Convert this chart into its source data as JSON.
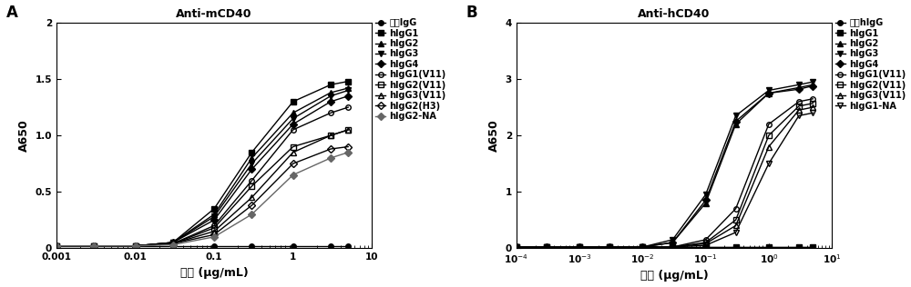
{
  "panel_A": {
    "title": "Anti-mCD40",
    "xlabel": "浓度 (μg/mL)",
    "ylabel": "A650",
    "xlim_log": [
      -3,
      1
    ],
    "ylim": [
      0,
      2
    ],
    "yticks": [
      0,
      0.5,
      1.0,
      1.5,
      2.0
    ],
    "ytick_labels": [
      "0",
      "0.5",
      "1.0",
      "1.5",
      "2"
    ],
    "xtick_labels": [
      "0.001",
      "0.01",
      "0.1",
      "1",
      "10"
    ],
    "xtick_vals": [
      0.001,
      0.01,
      0.1,
      1,
      10
    ],
    "label": "A",
    "series": [
      {
        "name": "对照IgG",
        "x": [
          0.001,
          0.003,
          0.01,
          0.03,
          0.1,
          0.3,
          1.0,
          3.0,
          5.0
        ],
        "y": [
          0.02,
          0.02,
          0.02,
          0.02,
          0.02,
          0.02,
          0.02,
          0.02,
          0.02
        ],
        "marker": "o",
        "fillstyle": "full",
        "color": "#000000",
        "markersize": 4,
        "linewidth": 1.0
      },
      {
        "name": "hIgG1",
        "x": [
          0.001,
          0.003,
          0.01,
          0.03,
          0.1,
          0.3,
          1.0,
          3.0,
          5.0
        ],
        "y": [
          0.02,
          0.02,
          0.02,
          0.05,
          0.35,
          0.85,
          1.3,
          1.45,
          1.48
        ],
        "marker": "s",
        "fillstyle": "full",
        "color": "#000000",
        "markersize": 4,
        "linewidth": 1.0
      },
      {
        "name": "hIgG2",
        "x": [
          0.001,
          0.003,
          0.01,
          0.03,
          0.1,
          0.3,
          1.0,
          3.0,
          5.0
        ],
        "y": [
          0.02,
          0.02,
          0.02,
          0.05,
          0.3,
          0.8,
          1.2,
          1.38,
          1.42
        ],
        "marker": "^",
        "fillstyle": "full",
        "color": "#000000",
        "markersize": 4,
        "linewidth": 1.0
      },
      {
        "name": "hIgG3",
        "x": [
          0.001,
          0.003,
          0.01,
          0.03,
          0.1,
          0.3,
          1.0,
          3.0,
          5.0
        ],
        "y": [
          0.02,
          0.02,
          0.02,
          0.05,
          0.28,
          0.75,
          1.15,
          1.35,
          1.4
        ],
        "marker": "v",
        "fillstyle": "full",
        "color": "#000000",
        "markersize": 4,
        "linewidth": 1.0
      },
      {
        "name": "hIgG4",
        "x": [
          0.001,
          0.003,
          0.01,
          0.03,
          0.1,
          0.3,
          1.0,
          3.0,
          5.0
        ],
        "y": [
          0.02,
          0.02,
          0.02,
          0.05,
          0.25,
          0.7,
          1.1,
          1.3,
          1.35
        ],
        "marker": "D",
        "fillstyle": "full",
        "color": "#000000",
        "markersize": 4,
        "linewidth": 1.0
      },
      {
        "name": "hIgG1(V11)",
        "x": [
          0.001,
          0.003,
          0.01,
          0.03,
          0.1,
          0.3,
          1.0,
          3.0,
          5.0
        ],
        "y": [
          0.02,
          0.02,
          0.02,
          0.04,
          0.2,
          0.6,
          1.05,
          1.2,
          1.25
        ],
        "marker": "o",
        "fillstyle": "none",
        "color": "#000000",
        "markersize": 4,
        "linewidth": 1.0
      },
      {
        "name": "hIgG2(V11)",
        "x": [
          0.001,
          0.003,
          0.01,
          0.03,
          0.1,
          0.3,
          1.0,
          3.0,
          5.0
        ],
        "y": [
          0.02,
          0.02,
          0.02,
          0.04,
          0.18,
          0.55,
          0.9,
          1.0,
          1.05
        ],
        "marker": "s",
        "fillstyle": "none",
        "color": "#000000",
        "markersize": 4,
        "linewidth": 1.0
      },
      {
        "name": "hIgG3(V11)",
        "x": [
          0.001,
          0.003,
          0.01,
          0.03,
          0.1,
          0.3,
          1.0,
          3.0,
          5.0
        ],
        "y": [
          0.02,
          0.02,
          0.02,
          0.04,
          0.15,
          0.45,
          0.85,
          1.0,
          1.05
        ],
        "marker": "^",
        "fillstyle": "none",
        "color": "#000000",
        "markersize": 4,
        "linewidth": 1.0
      },
      {
        "name": "hIgG2(H3)",
        "x": [
          0.001,
          0.003,
          0.01,
          0.03,
          0.1,
          0.3,
          1.0,
          3.0,
          5.0
        ],
        "y": [
          0.02,
          0.02,
          0.02,
          0.04,
          0.12,
          0.38,
          0.75,
          0.88,
          0.9
        ],
        "marker": "D",
        "fillstyle": "none",
        "color": "#000000",
        "markersize": 4,
        "linewidth": 1.0
      },
      {
        "name": "hIgG2-NA",
        "x": [
          0.001,
          0.003,
          0.01,
          0.03,
          0.1,
          0.3,
          1.0,
          3.0,
          5.0
        ],
        "y": [
          0.02,
          0.02,
          0.02,
          0.03,
          0.1,
          0.3,
          0.65,
          0.8,
          0.85
        ],
        "marker": "D",
        "fillstyle": "full",
        "color": "#666666",
        "markersize": 4,
        "linewidth": 1.0
      }
    ]
  },
  "panel_B": {
    "title": "Anti-hCD40",
    "xlabel": "浓度 (μg/mL)",
    "ylabel": "A650",
    "xlim_log": [
      -4,
      1
    ],
    "ylim": [
      0,
      4
    ],
    "yticks": [
      0,
      1,
      2,
      3,
      4
    ],
    "ytick_labels": [
      "0",
      "1",
      "2",
      "3",
      "4"
    ],
    "xtick_labels": [
      "10$^{-4}$",
      "10$^{-3}$",
      "10$^{-2}$",
      "10$^{-1}$",
      "10$^{0}$",
      "10$^{1}$"
    ],
    "xtick_vals": [
      0.0001,
      0.001,
      0.01,
      0.1,
      1.0,
      10.0
    ],
    "label": "B",
    "series": [
      {
        "name": "对照hIgG",
        "x": [
          0.0001,
          0.0003,
          0.001,
          0.003,
          0.01,
          0.03,
          0.1,
          0.3,
          1.0,
          3.0,
          5.0
        ],
        "y": [
          0.02,
          0.02,
          0.02,
          0.02,
          0.02,
          0.02,
          0.02,
          0.02,
          0.02,
          0.02,
          0.02
        ],
        "marker": "o",
        "fillstyle": "full",
        "color": "#000000",
        "markersize": 4,
        "linewidth": 1.0
      },
      {
        "name": "hIgG1",
        "x": [
          0.0001,
          0.0003,
          0.001,
          0.003,
          0.01,
          0.03,
          0.1,
          0.3,
          1.0,
          3.0,
          5.0
        ],
        "y": [
          0.02,
          0.02,
          0.02,
          0.02,
          0.02,
          0.02,
          0.02,
          0.02,
          0.02,
          0.02,
          0.02
        ],
        "marker": "s",
        "fillstyle": "full",
        "color": "#000000",
        "markersize": 4,
        "linewidth": 1.0
      },
      {
        "name": "hIgG2",
        "x": [
          0.0001,
          0.0003,
          0.001,
          0.003,
          0.01,
          0.03,
          0.1,
          0.3,
          1.0,
          3.0,
          5.0
        ],
        "y": [
          0.02,
          0.02,
          0.02,
          0.02,
          0.02,
          0.1,
          0.8,
          2.2,
          2.75,
          2.85,
          2.9
        ],
        "marker": "^",
        "fillstyle": "full",
        "color": "#000000",
        "markersize": 4,
        "linewidth": 1.0
      },
      {
        "name": "hIgG3",
        "x": [
          0.0001,
          0.0003,
          0.001,
          0.003,
          0.01,
          0.03,
          0.1,
          0.3,
          1.0,
          3.0,
          5.0
        ],
        "y": [
          0.02,
          0.02,
          0.02,
          0.02,
          0.02,
          0.15,
          0.95,
          2.35,
          2.8,
          2.9,
          2.95
        ],
        "marker": "v",
        "fillstyle": "full",
        "color": "#000000",
        "markersize": 4,
        "linewidth": 1.0
      },
      {
        "name": "hIgG4",
        "x": [
          0.0001,
          0.0003,
          0.001,
          0.003,
          0.01,
          0.03,
          0.1,
          0.3,
          1.0,
          3.0,
          5.0
        ],
        "y": [
          0.02,
          0.02,
          0.02,
          0.02,
          0.02,
          0.1,
          0.85,
          2.25,
          2.75,
          2.82,
          2.88
        ],
        "marker": "D",
        "fillstyle": "full",
        "color": "#000000",
        "markersize": 4,
        "linewidth": 1.0
      },
      {
        "name": "hIgG1(V11)",
        "x": [
          0.0001,
          0.0003,
          0.001,
          0.003,
          0.01,
          0.03,
          0.1,
          0.3,
          1.0,
          3.0,
          5.0
        ],
        "y": [
          0.02,
          0.02,
          0.02,
          0.02,
          0.02,
          0.02,
          0.15,
          0.7,
          2.2,
          2.6,
          2.65
        ],
        "marker": "o",
        "fillstyle": "none",
        "color": "#000000",
        "markersize": 4,
        "linewidth": 1.0
      },
      {
        "name": "hIgG2(V11)",
        "x": [
          0.0001,
          0.0003,
          0.001,
          0.003,
          0.01,
          0.03,
          0.1,
          0.3,
          1.0,
          3.0,
          5.0
        ],
        "y": [
          0.02,
          0.02,
          0.02,
          0.02,
          0.02,
          0.02,
          0.1,
          0.5,
          2.0,
          2.52,
          2.57
        ],
        "marker": "s",
        "fillstyle": "none",
        "color": "#000000",
        "markersize": 4,
        "linewidth": 1.0
      },
      {
        "name": "hIgG3(V11)",
        "x": [
          0.0001,
          0.0003,
          0.001,
          0.003,
          0.01,
          0.03,
          0.1,
          0.3,
          1.0,
          3.0,
          5.0
        ],
        "y": [
          0.02,
          0.02,
          0.02,
          0.02,
          0.02,
          0.02,
          0.08,
          0.4,
          1.8,
          2.45,
          2.5
        ],
        "marker": "^",
        "fillstyle": "none",
        "color": "#000000",
        "markersize": 4,
        "linewidth": 1.0
      },
      {
        "name": "hIgG1-NA",
        "x": [
          0.0001,
          0.0003,
          0.001,
          0.003,
          0.01,
          0.03,
          0.1,
          0.3,
          1.0,
          3.0,
          5.0
        ],
        "y": [
          0.02,
          0.02,
          0.02,
          0.02,
          0.02,
          0.02,
          0.05,
          0.28,
          1.5,
          2.35,
          2.4
        ],
        "marker": "v",
        "fillstyle": "none",
        "color": "#000000",
        "markersize": 4,
        "linewidth": 1.0
      }
    ]
  },
  "font_color": "#000000",
  "background_color": "#ffffff",
  "title_fontsize": 9,
  "label_fontsize": 9,
  "tick_fontsize": 7.5,
  "legend_fontsize": 7
}
